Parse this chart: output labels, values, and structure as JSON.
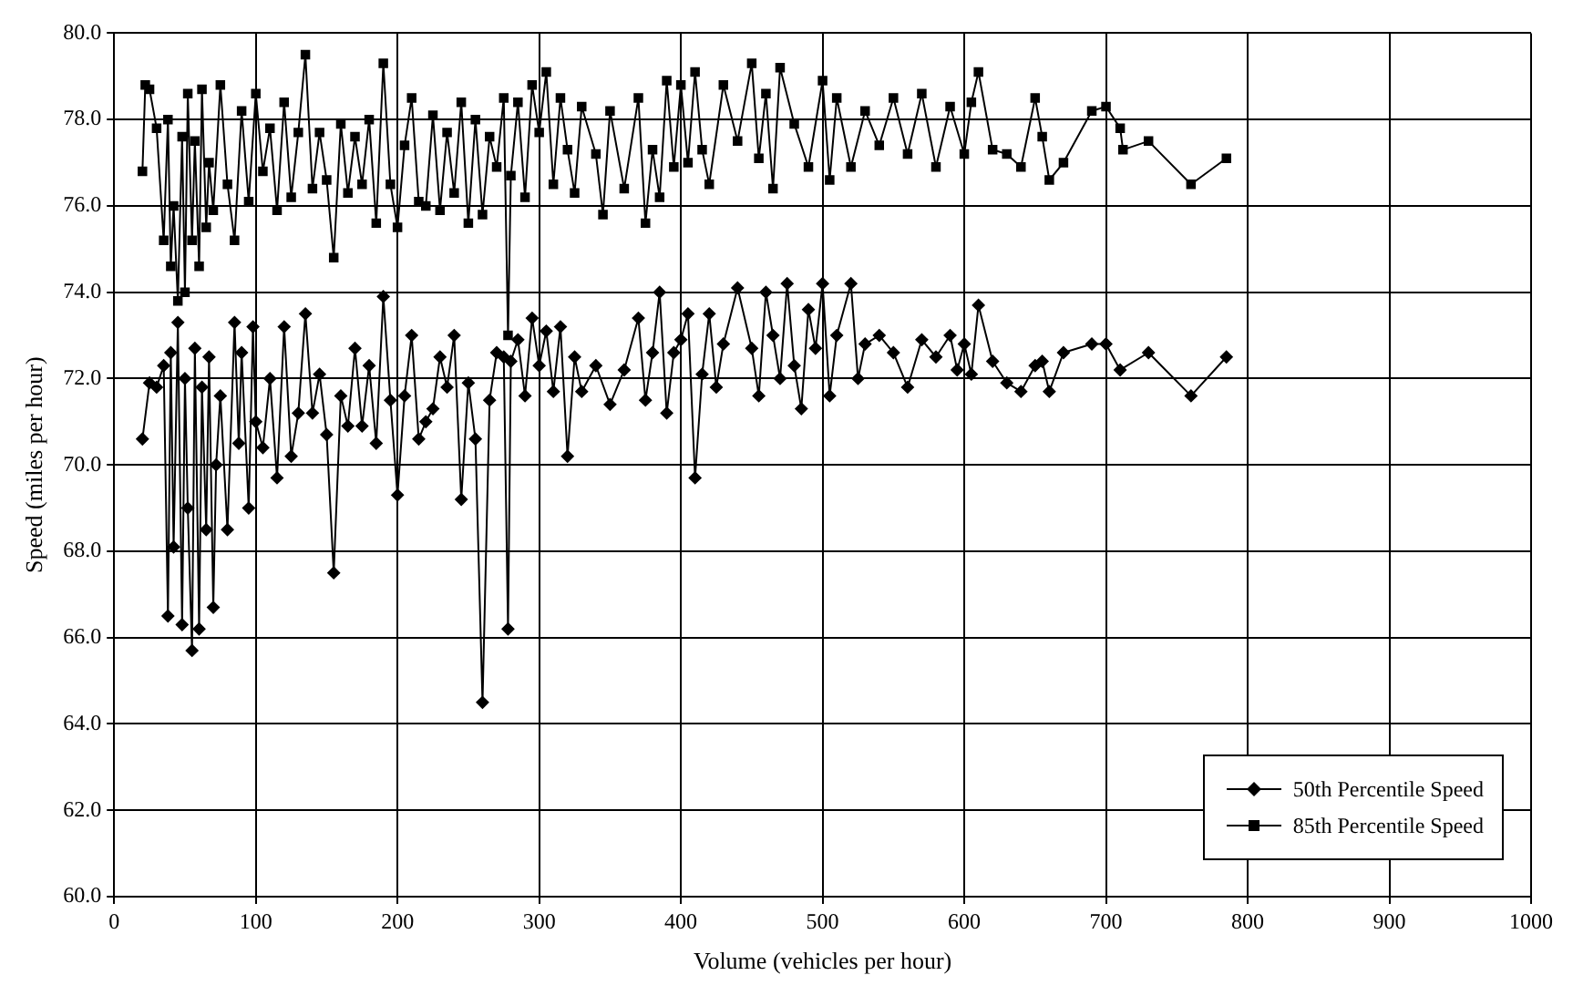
{
  "chart_data": {
    "type": "line",
    "xlabel": "Volume (vehicles per hour)",
    "ylabel": "Speed (miles per hour)",
    "xlim": [
      0,
      1000
    ],
    "xticks": [
      0,
      100,
      200,
      300,
      400,
      500,
      600,
      700,
      800,
      900,
      1000
    ],
    "ylim": [
      60,
      80
    ],
    "yticks": [
      {
        "value": 60,
        "label": "60.0"
      },
      {
        "value": 62,
        "label": "62.0"
      },
      {
        "value": 64,
        "label": "64.0"
      },
      {
        "value": 66,
        "label": "66.0"
      },
      {
        "value": 68,
        "label": "68.0"
      },
      {
        "value": 70,
        "label": "70.0"
      },
      {
        "value": 72,
        "label": "72.0"
      },
      {
        "value": 74,
        "label": "74.0"
      },
      {
        "value": 76,
        "label": "76.0"
      },
      {
        "value": 78,
        "label": "78.0"
      },
      {
        "value": 80,
        "label": "80.0"
      }
    ],
    "grid": true,
    "legend": "bottom right",
    "series": [
      {
        "name": "50th Percentile Speed",
        "color": "#000000",
        "marker": "diamond",
        "x": [
          20,
          25,
          30,
          35,
          38,
          40,
          42,
          45,
          48,
          50,
          52,
          55,
          57,
          60,
          62,
          65,
          67,
          70,
          72,
          75,
          80,
          85,
          88,
          90,
          95,
          98,
          100,
          105,
          110,
          115,
          120,
          125,
          130,
          135,
          140,
          145,
          150,
          155,
          160,
          165,
          170,
          175,
          180,
          185,
          190,
          195,
          200,
          205,
          210,
          215,
          220,
          225,
          230,
          235,
          240,
          245,
          250,
          255,
          260,
          265,
          270,
          275,
          278,
          280,
          285,
          290,
          295,
          300,
          305,
          310,
          315,
          320,
          325,
          330,
          340,
          350,
          360,
          370,
          375,
          380,
          385,
          390,
          395,
          400,
          405,
          410,
          415,
          420,
          425,
          430,
          440,
          450,
          455,
          460,
          465,
          470,
          475,
          480,
          485,
          490,
          495,
          500,
          505,
          510,
          520,
          525,
          530,
          540,
          550,
          560,
          570,
          580,
          590,
          595,
          600,
          605,
          610,
          620,
          630,
          640,
          650,
          655,
          660,
          670,
          690,
          700,
          710,
          730,
          760,
          785
        ],
        "values": [
          70.6,
          71.9,
          71.8,
          72.3,
          66.5,
          72.6,
          68.1,
          73.3,
          66.3,
          72.0,
          69.0,
          65.7,
          72.7,
          66.2,
          71.8,
          68.5,
          72.5,
          66.7,
          70.0,
          71.6,
          68.5,
          73.3,
          70.5,
          72.6,
          69.0,
          73.2,
          71.0,
          70.4,
          72.0,
          69.7,
          73.2,
          70.2,
          71.2,
          73.5,
          71.2,
          72.1,
          70.7,
          67.5,
          71.6,
          70.9,
          72.7,
          70.9,
          72.3,
          70.5,
          73.9,
          71.5,
          69.3,
          71.6,
          73.0,
          70.6,
          71.0,
          71.3,
          72.5,
          71.8,
          73.0,
          69.2,
          71.9,
          70.6,
          64.5,
          71.5,
          72.6,
          72.5,
          66.2,
          72.4,
          72.9,
          71.6,
          73.4,
          72.3,
          73.1,
          71.7,
          73.2,
          70.2,
          72.5,
          71.7,
          72.3,
          71.4,
          72.2,
          73.4,
          71.5,
          72.6,
          74.0,
          71.2,
          72.6,
          72.9,
          73.5,
          69.7,
          72.1,
          73.5,
          71.8,
          72.8,
          74.1,
          72.7,
          71.6,
          74.0,
          73.0,
          72.0,
          74.2,
          72.3,
          71.3,
          73.6,
          72.7,
          74.2,
          71.6,
          73.0,
          74.2,
          72.0,
          72.8,
          73.0,
          72.6,
          71.8,
          72.9,
          72.5,
          73.0,
          72.2,
          72.8,
          72.1,
          73.7,
          72.4,
          71.9,
          71.7,
          72.3,
          72.4,
          71.7,
          72.6,
          72.8,
          72.8,
          72.2,
          72.6,
          71.6,
          72.5
        ]
      },
      {
        "name": "85th Percentile Speed",
        "color": "#000000",
        "marker": "square",
        "x": [
          20,
          22,
          25,
          30,
          35,
          38,
          40,
          42,
          45,
          48,
          50,
          52,
          55,
          57,
          60,
          62,
          65,
          67,
          70,
          75,
          80,
          85,
          90,
          95,
          100,
          105,
          110,
          115,
          120,
          125,
          130,
          135,
          140,
          145,
          150,
          155,
          160,
          165,
          170,
          175,
          180,
          185,
          190,
          195,
          200,
          205,
          210,
          215,
          220,
          225,
          230,
          235,
          240,
          245,
          250,
          255,
          260,
          265,
          270,
          275,
          278,
          280,
          285,
          290,
          295,
          300,
          305,
          310,
          315,
          320,
          325,
          330,
          340,
          345,
          350,
          360,
          370,
          375,
          380,
          385,
          390,
          395,
          400,
          405,
          410,
          415,
          420,
          430,
          440,
          450,
          455,
          460,
          465,
          470,
          480,
          490,
          500,
          505,
          510,
          520,
          530,
          540,
          550,
          560,
          570,
          580,
          590,
          600,
          605,
          610,
          620,
          630,
          640,
          650,
          655,
          660,
          670,
          690,
          700,
          710,
          712,
          730,
          760,
          785
        ],
        "values": [
          76.8,
          78.8,
          78.7,
          77.8,
          75.2,
          78.0,
          74.6,
          76.0,
          73.8,
          77.6,
          74.0,
          78.6,
          75.2,
          77.5,
          74.6,
          78.7,
          75.5,
          77.0,
          75.9,
          78.8,
          76.5,
          75.2,
          78.2,
          76.1,
          78.6,
          76.8,
          77.8,
          75.9,
          78.4,
          76.2,
          77.7,
          79.5,
          76.4,
          77.7,
          76.6,
          74.8,
          77.9,
          76.3,
          77.6,
          76.5,
          78.0,
          75.6,
          79.3,
          76.5,
          75.5,
          77.4,
          78.5,
          76.1,
          76.0,
          78.1,
          75.9,
          77.7,
          76.3,
          78.4,
          75.6,
          78.0,
          75.8,
          77.6,
          76.9,
          78.5,
          73.0,
          76.7,
          78.4,
          76.2,
          78.8,
          77.7,
          79.1,
          76.5,
          78.5,
          77.3,
          76.3,
          78.3,
          77.2,
          75.8,
          78.2,
          76.4,
          78.5,
          75.6,
          77.3,
          76.2,
          78.9,
          76.9,
          78.8,
          77.0,
          79.1,
          77.3,
          76.5,
          78.8,
          77.5,
          79.3,
          77.1,
          78.6,
          76.4,
          79.2,
          77.9,
          76.9,
          78.9,
          76.6,
          78.5,
          76.9,
          78.2,
          77.4,
          78.5,
          77.2,
          78.6,
          76.9,
          78.3,
          77.2,
          78.4,
          79.1,
          77.3,
          77.2,
          76.9,
          78.5,
          77.6,
          76.6,
          77.0,
          78.2,
          78.3,
          77.8,
          77.3,
          77.5,
          76.5,
          77.1
        ]
      }
    ]
  }
}
